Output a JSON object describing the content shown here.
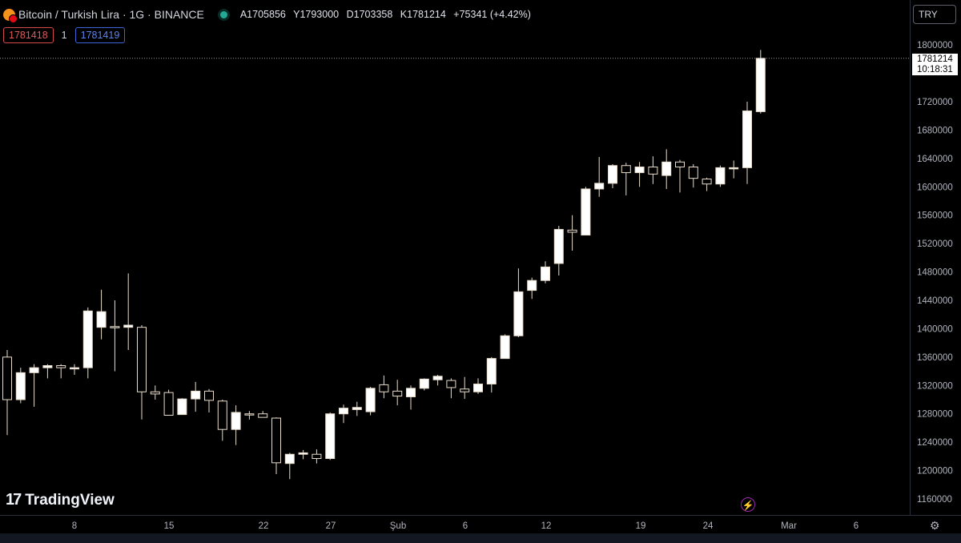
{
  "header": {
    "symbol_title": "Bitcoin / Turkish Lira · 1G · BINANCE",
    "ohlc": {
      "open": "A1705856",
      "high": "Y1793000",
      "low": "D1703358",
      "close": "K1781214",
      "change": "+75341 (+4.42%)"
    },
    "bid_price": "1781418",
    "spread": "1",
    "ask_price": "1781419",
    "currency_button": "TRY",
    "status_color": "#22ab94"
  },
  "price_label": {
    "price": "1781214",
    "countdown": "10:18:31"
  },
  "branding": {
    "logo_text": "TradingView",
    "logo_mark": "17"
  },
  "icons": {
    "lightning": "lightning-icon",
    "settings": "gear-icon",
    "coin": "bitcoin-icon"
  },
  "colors": {
    "background": "#000000",
    "up_candle": "#ffffff",
    "down_candle": "#000000",
    "wick": "#e8dccb",
    "grid": "#2a2e39"
  },
  "chart_data": {
    "type": "candlestick",
    "title": "Bitcoin / Turkish Lira · 1G · BINANCE",
    "x_ticks": [
      "8",
      "15",
      "22",
      "27",
      "Şub",
      "6",
      "12",
      "19",
      "24",
      "Mar",
      "6"
    ],
    "y_ticks": [
      1160000,
      1200000,
      1240000,
      1280000,
      1320000,
      1360000,
      1400000,
      1440000,
      1480000,
      1520000,
      1560000,
      1600000,
      1640000,
      1680000,
      1720000,
      1800000
    ],
    "ylim": [
      1140000,
      1820000
    ],
    "last_price": 1781214,
    "candles": [
      {
        "o": 1360000,
        "h": 1370000,
        "l": 1250000,
        "c": 1300000
      },
      {
        "o": 1300000,
        "h": 1345000,
        "l": 1295000,
        "c": 1338000
      },
      {
        "o": 1338000,
        "h": 1350000,
        "l": 1290000,
        "c": 1345000
      },
      {
        "o": 1345000,
        "h": 1350000,
        "l": 1330000,
        "c": 1348000
      },
      {
        "o": 1348000,
        "h": 1350000,
        "l": 1330000,
        "c": 1345000
      },
      {
        "o": 1345000,
        "h": 1350000,
        "l": 1335000,
        "c": 1345000
      },
      {
        "o": 1345000,
        "h": 1430000,
        "l": 1330000,
        "c": 1425000
      },
      {
        "o": 1402000,
        "h": 1455000,
        "l": 1385000,
        "c": 1424000
      },
      {
        "o": 1403000,
        "h": 1440000,
        "l": 1340000,
        "c": 1402000
      },
      {
        "o": 1402000,
        "h": 1478000,
        "l": 1370000,
        "c": 1405000
      },
      {
        "o": 1402000,
        "h": 1405000,
        "l": 1272000,
        "c": 1311000
      },
      {
        "o": 1311000,
        "h": 1320000,
        "l": 1300000,
        "c": 1308000
      },
      {
        "o": 1310000,
        "h": 1314000,
        "l": 1278000,
        "c": 1278000
      },
      {
        "o": 1279000,
        "h": 1302000,
        "l": 1279000,
        "c": 1301000
      },
      {
        "o": 1301000,
        "h": 1325000,
        "l": 1283000,
        "c": 1312000
      },
      {
        "o": 1312000,
        "h": 1315000,
        "l": 1282000,
        "c": 1299000
      },
      {
        "o": 1298000,
        "h": 1300000,
        "l": 1242000,
        "c": 1258000
      },
      {
        "o": 1258000,
        "h": 1292000,
        "l": 1236000,
        "c": 1282000
      },
      {
        "o": 1280000,
        "h": 1284000,
        "l": 1272000,
        "c": 1279000
      },
      {
        "o": 1280000,
        "h": 1284000,
        "l": 1275000,
        "c": 1275000
      },
      {
        "o": 1274000,
        "h": 1275000,
        "l": 1195000,
        "c": 1211000
      },
      {
        "o": 1210000,
        "h": 1225000,
        "l": 1188000,
        "c": 1223000
      },
      {
        "o": 1223000,
        "h": 1229000,
        "l": 1216000,
        "c": 1225000
      },
      {
        "o": 1223000,
        "h": 1230000,
        "l": 1210000,
        "c": 1217000
      },
      {
        "o": 1217000,
        "h": 1282000,
        "l": 1215000,
        "c": 1280000
      },
      {
        "o": 1280000,
        "h": 1293000,
        "l": 1267000,
        "c": 1288000
      },
      {
        "o": 1286000,
        "h": 1297000,
        "l": 1277000,
        "c": 1289000
      },
      {
        "o": 1283000,
        "h": 1318000,
        "l": 1278000,
        "c": 1316000
      },
      {
        "o": 1321000,
        "h": 1334000,
        "l": 1302000,
        "c": 1311000
      },
      {
        "o": 1312000,
        "h": 1328000,
        "l": 1292000,
        "c": 1305000
      },
      {
        "o": 1304000,
        "h": 1320000,
        "l": 1286000,
        "c": 1316000
      },
      {
        "o": 1316000,
        "h": 1330000,
        "l": 1313000,
        "c": 1329000
      },
      {
        "o": 1328000,
        "h": 1335000,
        "l": 1320000,
        "c": 1333000
      },
      {
        "o": 1327000,
        "h": 1330000,
        "l": 1302000,
        "c": 1317000
      },
      {
        "o": 1315000,
        "h": 1332000,
        "l": 1301000,
        "c": 1311000
      },
      {
        "o": 1311000,
        "h": 1330000,
        "l": 1308000,
        "c": 1322000
      },
      {
        "o": 1322000,
        "h": 1360000,
        "l": 1310000,
        "c": 1358000
      },
      {
        "o": 1358000,
        "h": 1392000,
        "l": 1358000,
        "c": 1390000
      },
      {
        "o": 1390000,
        "h": 1485000,
        "l": 1388000,
        "c": 1452000
      },
      {
        "o": 1454000,
        "h": 1472000,
        "l": 1442000,
        "c": 1468000
      },
      {
        "o": 1468000,
        "h": 1495000,
        "l": 1464000,
        "c": 1487000
      },
      {
        "o": 1492000,
        "h": 1545000,
        "l": 1475000,
        "c": 1540000
      },
      {
        "o": 1539000,
        "h": 1560000,
        "l": 1510000,
        "c": 1536000
      },
      {
        "o": 1532000,
        "h": 1600000,
        "l": 1532000,
        "c": 1597000
      },
      {
        "o": 1597000,
        "h": 1642000,
        "l": 1586000,
        "c": 1605000
      },
      {
        "o": 1605000,
        "h": 1632000,
        "l": 1598000,
        "c": 1630000
      },
      {
        "o": 1630000,
        "h": 1634000,
        "l": 1588000,
        "c": 1620000
      },
      {
        "o": 1620000,
        "h": 1635000,
        "l": 1600000,
        "c": 1628000
      },
      {
        "o": 1628000,
        "h": 1643000,
        "l": 1604000,
        "c": 1618000
      },
      {
        "o": 1616000,
        "h": 1653000,
        "l": 1597000,
        "c": 1635000
      },
      {
        "o": 1635000,
        "h": 1638000,
        "l": 1592000,
        "c": 1628000
      },
      {
        "o": 1628000,
        "h": 1632000,
        "l": 1599000,
        "c": 1612000
      },
      {
        "o": 1611000,
        "h": 1613000,
        "l": 1594000,
        "c": 1604000
      },
      {
        "o": 1604000,
        "h": 1630000,
        "l": 1600000,
        "c": 1627000
      },
      {
        "o": 1627000,
        "h": 1637000,
        "l": 1612000,
        "c": 1627000
      },
      {
        "o": 1627000,
        "h": 1720000,
        "l": 1604000,
        "c": 1707000
      },
      {
        "o": 1706000,
        "h": 1793000,
        "l": 1703358,
        "c": 1781214
      }
    ]
  }
}
